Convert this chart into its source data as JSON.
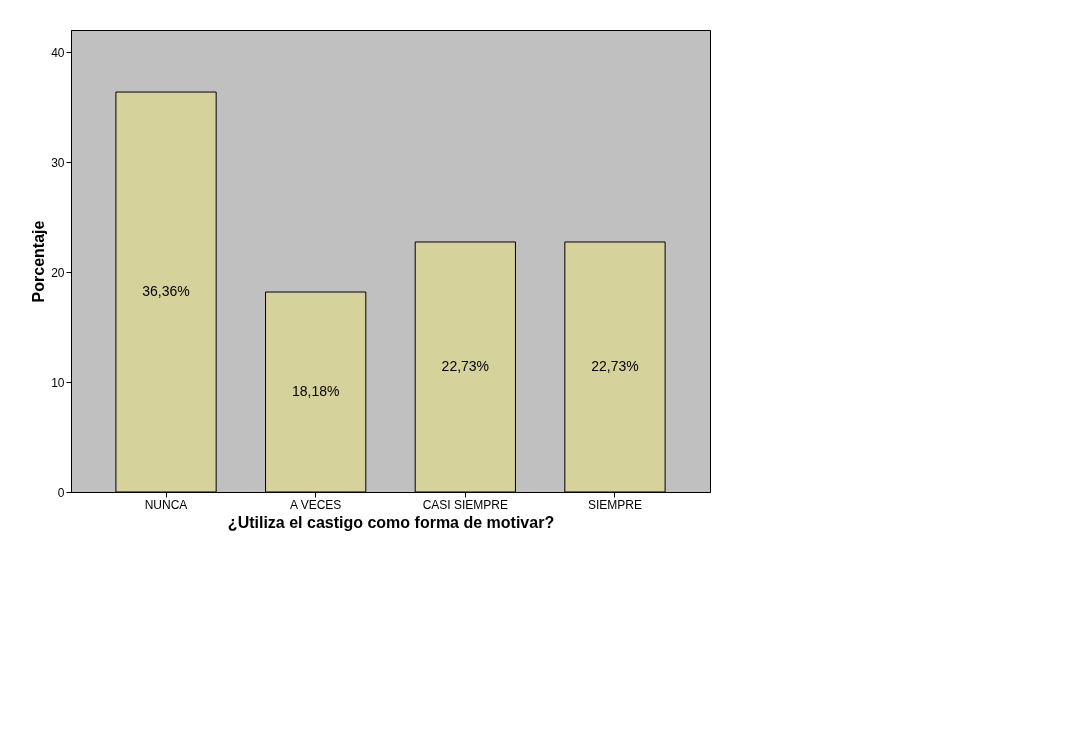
{
  "chart_data": {
    "type": "bar",
    "categories": [
      "NUNCA",
      "A VECES",
      "CASI SIEMPRE",
      "SIEMPRE"
    ],
    "values": [
      36.36,
      18.18,
      22.73,
      22.73
    ],
    "value_labels": [
      "36,36%",
      "18,18%",
      "22,73%",
      "22,73%"
    ],
    "color": "#d6d29c",
    "xlabel": "¿Utiliza el castigo como forma de motivar?",
    "ylabel": "Porcentaje",
    "ylim": [
      0,
      42
    ],
    "yticks": [
      0,
      10,
      20,
      30,
      40
    ],
    "grid": false
  }
}
